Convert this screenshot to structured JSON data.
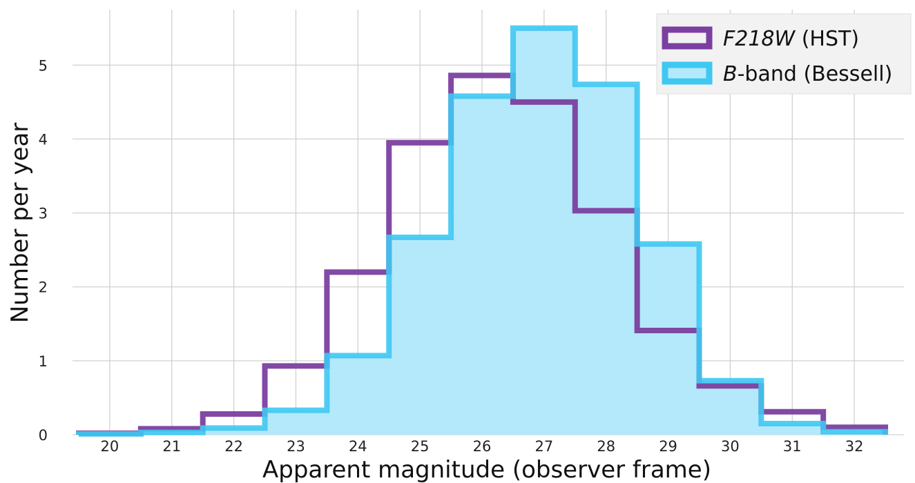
{
  "chart_data": {
    "type": "histogram",
    "xlabel": "Apparent magnitude (observer frame)",
    "ylabel": "Number per year",
    "xlim": [
      19.4,
      32.8
    ],
    "ylim": [
      0,
      5.75
    ],
    "xticks": [
      20,
      21,
      22,
      23,
      24,
      25,
      26,
      27,
      28,
      29,
      30,
      31,
      32
    ],
    "yticks": [
      0,
      1,
      2,
      3,
      4,
      5
    ],
    "grid": true,
    "legend_position": "top-right",
    "bin_edges": [
      19.5,
      20.5,
      21.5,
      22.5,
      23.5,
      24.5,
      25.5,
      26.5,
      27.5,
      28.5,
      29.5,
      30.5,
      31.5,
      32.5
    ],
    "series": [
      {
        "name": "F218W (HST)",
        "label_italic": "F218W",
        "label_rest": " (HST)",
        "style": "step",
        "color": "#7b3fa0",
        "values": [
          0.02,
          0.08,
          0.28,
          0.93,
          2.2,
          3.95,
          4.86,
          4.5,
          3.03,
          1.41,
          0.66,
          0.31,
          0.1
        ]
      },
      {
        "name": "B-band (Bessell)",
        "label_italic": "B",
        "label_rest": "-band (Bessell)",
        "style": "stepfilled",
        "color": "#3fc8f2",
        "fill_color": "#b3e9fb",
        "values": [
          0.01,
          0.03,
          0.09,
          0.33,
          1.07,
          2.67,
          4.58,
          5.5,
          4.74,
          2.58,
          0.73,
          0.15,
          0.04
        ]
      }
    ]
  }
}
